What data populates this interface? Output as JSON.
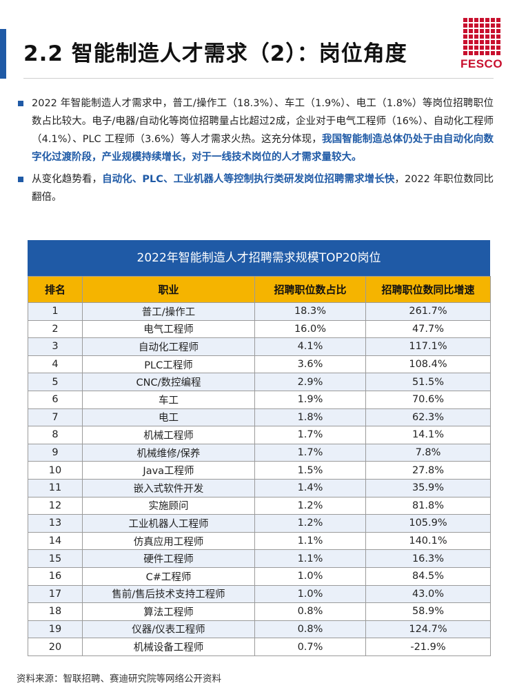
{
  "header": {
    "title": "2.2 智能制造人才需求（2）：岗位角度",
    "logo_text": "FESCO",
    "accent_color": "#1f5aa6",
    "logo_color": "#c8102e"
  },
  "paragraphs": [
    {
      "segments": [
        {
          "text": "2022 年智能制造人才需求中，普工/操作工（18.3%）、车工（1.9%）、电工（1.8%）等岗位招聘职位数占比较大。电子/电器/自动化等岗位招聘量占比超过2成，企业对于电气工程师（16%）、自动化工程师（4.1%）、PLC 工程师（3.6%）等人才需求火热。这充分体现，",
          "highlight": false
        },
        {
          "text": "我国智能制造总体仍处于由自动化向数字化过渡阶段，产业规模持续增长，对于一线技术岗位的人才需求量较大。",
          "highlight": true
        }
      ]
    },
    {
      "segments": [
        {
          "text": "从变化趋势看，",
          "highlight": false
        },
        {
          "text": "自动化、PLC、工业机器人等控制执行类研发岗位招聘需求增长快",
          "highlight": true
        },
        {
          "text": "，2022 年职位数同比翻倍。",
          "highlight": false
        }
      ]
    }
  ],
  "table": {
    "title": "2022年智能制造人才招聘需求规模TOP20岗位",
    "header_bg": "#f5b400",
    "columns": [
      "排名",
      "职业",
      "招聘职位数占比",
      "招聘职位数同比增速"
    ],
    "rows": [
      [
        "1",
        "普工/操作工",
        "18.3%",
        "261.7%"
      ],
      [
        "2",
        "电气工程师",
        "16.0%",
        "47.7%"
      ],
      [
        "3",
        "自动化工程师",
        "4.1%",
        "117.1%"
      ],
      [
        "4",
        "PLC工程师",
        "3.6%",
        "108.4%"
      ],
      [
        "5",
        "CNC/数控编程",
        "2.9%",
        "51.5%"
      ],
      [
        "6",
        "车工",
        "1.9%",
        "70.6%"
      ],
      [
        "7",
        "电工",
        "1.8%",
        "62.3%"
      ],
      [
        "8",
        "机械工程师",
        "1.7%",
        "14.1%"
      ],
      [
        "9",
        "机械维修/保养",
        "1.7%",
        "7.8%"
      ],
      [
        "10",
        "Java工程师",
        "1.5%",
        "27.8%"
      ],
      [
        "11",
        "嵌入式软件开发",
        "1.4%",
        "35.9%"
      ],
      [
        "12",
        "实施顾问",
        "1.2%",
        "81.8%"
      ],
      [
        "13",
        "工业机器人工程师",
        "1.2%",
        "105.9%"
      ],
      [
        "14",
        "仿真应用工程师",
        "1.1%",
        "140.1%"
      ],
      [
        "15",
        "硬件工程师",
        "1.1%",
        "16.3%"
      ],
      [
        "16",
        "C#工程师",
        "1.0%",
        "84.5%"
      ],
      [
        "17",
        "售前/售后技术支持工程师",
        "1.0%",
        "43.0%"
      ],
      [
        "18",
        "算法工程师",
        "0.8%",
        "58.9%"
      ],
      [
        "19",
        "仪器/仪表工程师",
        "0.8%",
        "124.7%"
      ],
      [
        "20",
        "机械设备工程师",
        "0.7%",
        "-21.9%"
      ]
    ]
  },
  "source": "资料来源：智联招聘、赛迪研究院等网络公开资料"
}
